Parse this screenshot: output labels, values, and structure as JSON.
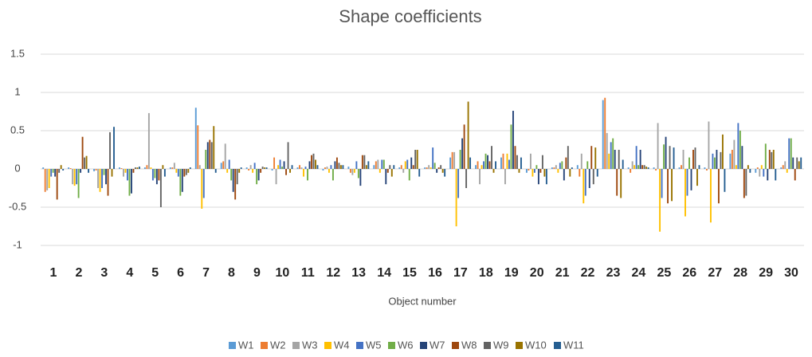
{
  "chart_data": {
    "type": "bar",
    "title": "Shape coefficients",
    "x_label": "Object number",
    "categories": [
      "1",
      "2",
      "3",
      "4",
      "5",
      "6",
      "7",
      "8",
      "9",
      "10",
      "11",
      "12",
      "13",
      "14",
      "15",
      "16",
      "17",
      "18",
      "19",
      "20",
      "21",
      "22",
      "23",
      "24",
      "25",
      "26",
      "27",
      "28",
      "29",
      "30"
    ],
    "ylim": [
      -1,
      1.5
    ],
    "yticks": [
      1.5,
      1,
      0.5,
      0,
      -0.5,
      -1
    ],
    "grid": true,
    "legend": "bottom",
    "series": [
      {
        "name": "W1",
        "color": "#5b9bd5",
        "values": [
          0.02,
          0.02,
          -0.03,
          0.02,
          0.02,
          0.02,
          0.8,
          0.08,
          0.02,
          -0.02,
          0.02,
          -0.02,
          0.03,
          0.05,
          0.02,
          0.02,
          0.15,
          0.05,
          0.15,
          -0.05,
          0.02,
          0.05,
          0.9,
          0.02,
          0.02,
          0.02,
          0.02,
          0.2,
          -0.05,
          0.02
        ]
      },
      {
        "name": "W2",
        "color": "#ed7d31",
        "values": [
          -0.3,
          0.01,
          -0.02,
          0.01,
          0.05,
          0.02,
          0.57,
          0.1,
          -0.02,
          0.15,
          0.05,
          0.02,
          -0.05,
          0.1,
          0.05,
          0.02,
          0.22,
          0.1,
          0.2,
          -0.02,
          0.02,
          -0.1,
          0.93,
          -0.05,
          -0.02,
          0.05,
          -0.02,
          0.25,
          0.02,
          0.05
        ]
      },
      {
        "name": "W3",
        "color": "#a5a5a5",
        "values": [
          -0.28,
          -0.2,
          -0.25,
          -0.1,
          0.73,
          0.08,
          0.05,
          0.33,
          0.05,
          -0.2,
          0.02,
          0.03,
          -0.08,
          0.12,
          -0.05,
          0.05,
          0.22,
          -0.2,
          -0.2,
          0.2,
          0.05,
          0.2,
          0.47,
          0.1,
          0.6,
          0.25,
          0.62,
          0.38,
          -0.1,
          0.1
        ]
      },
      {
        "name": "W4",
        "color": "#ffc000",
        "values": [
          -0.25,
          -0.22,
          -0.3,
          -0.05,
          0.02,
          -0.05,
          -0.52,
          -0.05,
          -0.05,
          0.05,
          -0.1,
          -0.05,
          -0.05,
          -0.05,
          0.1,
          0.02,
          -0.75,
          0.05,
          0.2,
          -0.1,
          -0.05,
          -0.45,
          0.2,
          0.05,
          -0.82,
          -0.62,
          -0.7,
          0.05,
          0.05,
          -0.05
        ]
      },
      {
        "name": "W5",
        "color": "#4472c4",
        "values": [
          -0.1,
          -0.2,
          -0.25,
          -0.15,
          -0.15,
          -0.1,
          -0.38,
          0.12,
          0.08,
          0.12,
          0.03,
          0.05,
          0.1,
          0.12,
          0.12,
          0.28,
          -0.38,
          0.1,
          0.12,
          -0.05,
          0.08,
          -0.35,
          0.35,
          0.3,
          -0.38,
          -0.35,
          0.2,
          0.6,
          -0.1,
          0.4
        ]
      },
      {
        "name": "W6",
        "color": "#70ad47",
        "values": [
          -0.05,
          -0.38,
          -0.08,
          -0.35,
          -0.12,
          -0.35,
          0.25,
          -0.15,
          -0.2,
          0.03,
          -0.15,
          -0.15,
          -0.12,
          0.12,
          -0.15,
          0.08,
          0.25,
          0.2,
          0.58,
          0.05,
          0.1,
          0.1,
          0.4,
          0.05,
          0.32,
          0.15,
          0.15,
          0.5,
          0.33,
          0.4
        ]
      },
      {
        "name": "W7",
        "color": "#264478",
        "values": [
          -0.1,
          -0.05,
          -0.2,
          -0.32,
          -0.2,
          -0.3,
          0.35,
          -0.3,
          -0.15,
          0.1,
          0.1,
          0.1,
          -0.22,
          -0.2,
          0.15,
          -0.05,
          0.4,
          0.18,
          0.76,
          -0.2,
          -0.15,
          -0.25,
          0.25,
          0.25,
          0.42,
          -0.28,
          0.25,
          0.3,
          -0.15,
          0.15
        ]
      },
      {
        "name": "W8",
        "color": "#9e480e",
        "values": [
          -0.4,
          0.42,
          -0.35,
          -0.05,
          -0.15,
          -0.1,
          0.38,
          -0.4,
          -0.05,
          -0.08,
          0.18,
          0.15,
          0.18,
          -0.05,
          0.05,
          0.02,
          0.58,
          0.1,
          0.3,
          -0.05,
          0.15,
          0.3,
          -0.35,
          0.05,
          -0.45,
          0.25,
          -0.45,
          -0.38,
          0.25,
          -0.15
        ]
      },
      {
        "name": "W9",
        "color": "#636363",
        "values": [
          -0.05,
          0.15,
          0.48,
          0.02,
          -0.5,
          -0.08,
          0.35,
          -0.2,
          0.03,
          0.35,
          0.2,
          0.08,
          0.18,
          0.05,
          0.25,
          0.05,
          -0.25,
          0.3,
          0.18,
          0.18,
          0.3,
          -0.2,
          0.25,
          0.05,
          0.3,
          0.28,
          0.22,
          -0.35,
          0.22,
          0.15
        ]
      },
      {
        "name": "W10",
        "color": "#997300",
        "values": [
          0.05,
          0.17,
          -0.1,
          0.02,
          0.05,
          -0.05,
          0.56,
          -0.05,
          0.02,
          -0.05,
          0.12,
          0.05,
          0.05,
          -0.1,
          0.25,
          -0.05,
          0.88,
          -0.05,
          -0.05,
          -0.1,
          -0.1,
          0.28,
          -0.38,
          0.03,
          -0.42,
          -0.22,
          0.45,
          0.05,
          0.25,
          0.1
        ]
      },
      {
        "name": "W11",
        "color": "#255e91",
        "values": [
          -0.02,
          -0.05,
          0.55,
          0.03,
          -0.1,
          0.02,
          -0.05,
          0.02,
          0.02,
          0.05,
          0.05,
          0.05,
          0.1,
          0.05,
          -0.1,
          -0.1,
          0.15,
          0.1,
          0.15,
          -0.2,
          0.02,
          -0.1,
          0.12,
          0.02,
          0.28,
          0.05,
          -0.3,
          -0.05,
          -0.15,
          0.15
        ]
      }
    ]
  }
}
